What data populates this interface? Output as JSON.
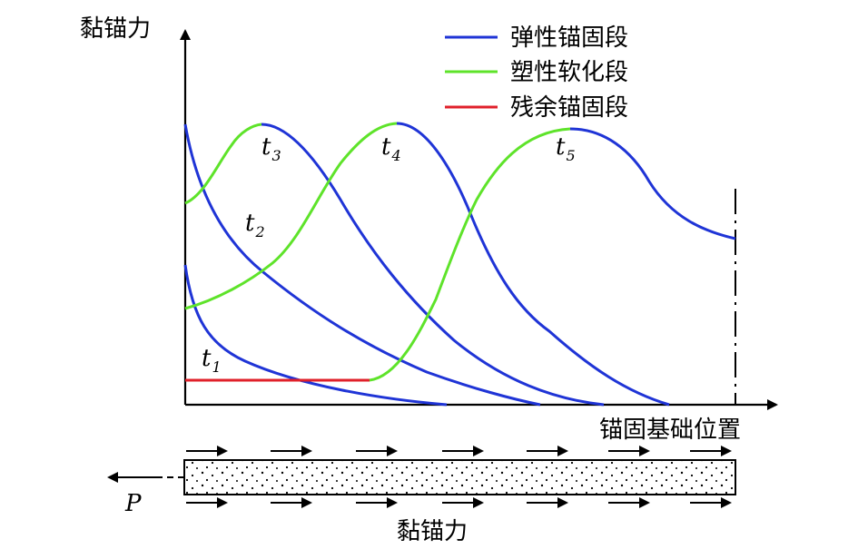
{
  "axes": {
    "y_label": "黏锚力",
    "x_label": "锚固基础位置"
  },
  "legend": [
    {
      "label": "弹性锚固段",
      "color": "#1f34d6"
    },
    {
      "label": "塑性软化段",
      "color": "#5ee32a"
    },
    {
      "label": "残余锚固段",
      "color": "#e0202a"
    }
  ],
  "curve_labels": [
    {
      "base": "t",
      "sub": "1"
    },
    {
      "base": "t",
      "sub": "2"
    },
    {
      "base": "t",
      "sub": "3"
    },
    {
      "base": "t",
      "sub": "4"
    },
    {
      "base": "t",
      "sub": "5"
    }
  ],
  "anchor": {
    "force_label": "P",
    "bond_label": "黏锚力"
  }
}
